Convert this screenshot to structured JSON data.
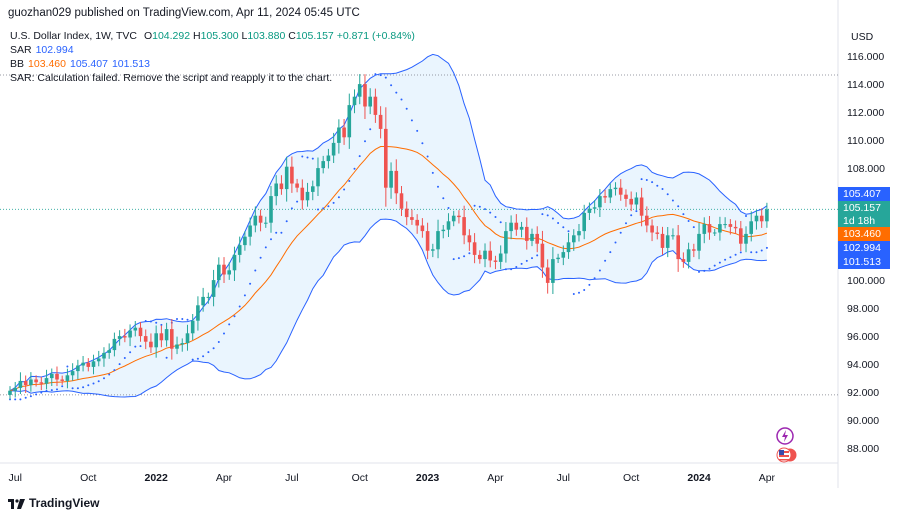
{
  "header": {
    "published": "guozhan029 published on TradingView.com, Apr 11, 2024 05:45 UTC"
  },
  "legend": {
    "symbol": "U.S. Dollar Index, 1W, TVC",
    "o_label": "O",
    "o": "104.292",
    "h_label": "H",
    "h": "105.300",
    "l_label": "L",
    "l": "103.880",
    "c_label": "C",
    "c": "105.157",
    "change": "+0.871 (+0.84%)",
    "sar_label": "SAR",
    "sar": "102.994",
    "bb_label": "BB",
    "bb_basis": "103.460",
    "bb_upper": "105.407",
    "bb_lower": "101.513",
    "sar_error": "SAR: Calculation failed. Remove the script and reapply it to the chart."
  },
  "axis": {
    "currency": "USD"
  },
  "badges": {
    "upper": "105.407",
    "price": "105.157",
    "countdown": "1d 18h",
    "basis": "103.460",
    "sar": "102.994",
    "lower": "101.513"
  },
  "footer": {
    "brand": "TradingView"
  },
  "colors": {
    "up": "#26a69a",
    "down": "#ef5350",
    "band": "#2962ff",
    "basis": "#ff6d00",
    "sar": "#2962ff",
    "fill": "#e3f2fd"
  },
  "icons": [
    "tradingview-logo-icon",
    "lightning-icon",
    "us-flag-icon"
  ],
  "chart_data": {
    "type": "candlestick",
    "title": "U.S. Dollar Index, 1W, TVC",
    "ylim": [
      86.5,
      117.5
    ],
    "y_ticks": [
      "116.000",
      "114.000",
      "112.000",
      "110.000",
      "108.000",
      "106.000",
      "104.000",
      "102.000",
      "100.000",
      "98.000",
      "96.000",
      "94.000",
      "92.000",
      "90.000",
      "88.000"
    ],
    "y_tick_values": [
      116,
      114,
      112,
      110,
      108,
      106,
      104,
      102,
      100,
      98,
      96,
      94,
      92,
      90,
      88
    ],
    "x_ticks": [
      {
        "label": "Jul",
        "bold": false,
        "date": "2021-07"
      },
      {
        "label": "Oct",
        "bold": false,
        "date": "2021-10"
      },
      {
        "label": "2022",
        "bold": true,
        "date": "2022-01"
      },
      {
        "label": "Apr",
        "bold": false,
        "date": "2022-04"
      },
      {
        "label": "Jul",
        "bold": false,
        "date": "2022-07"
      },
      {
        "label": "Oct",
        "bold": false,
        "date": "2022-10"
      },
      {
        "label": "2023",
        "bold": true,
        "date": "2023-01"
      },
      {
        "label": "Apr",
        "bold": false,
        "date": "2023-04"
      },
      {
        "label": "Jul",
        "bold": false,
        "date": "2023-07"
      },
      {
        "label": "Oct",
        "bold": false,
        "date": "2023-10"
      },
      {
        "label": "2024",
        "bold": true,
        "date": "2024-01"
      },
      {
        "label": "Apr",
        "bold": false,
        "date": "2024-04"
      }
    ],
    "close_series": [
      92.2,
      92.4,
      92.9,
      92.6,
      93.0,
      92.8,
      92.7,
      93.1,
      93.4,
      93.0,
      92.9,
      93.3,
      93.6,
      94.0,
      94.2,
      93.9,
      94.3,
      94.5,
      94.9,
      95.1,
      95.9,
      96.1,
      96.0,
      96.5,
      96.7,
      96.1,
      95.7,
      95.3,
      96.3,
      95.8,
      96.6,
      95.2,
      95.5,
      95.6,
      96.3,
      97.2,
      98.3,
      98.9,
      98.9,
      100.1,
      101.2,
      100.5,
      100.8,
      101.9,
      102.6,
      103.2,
      104.0,
      104.7,
      104.2,
      104.2,
      106.1,
      107.0,
      106.6,
      108.2,
      107.0,
      106.7,
      105.8,
      106.4,
      106.8,
      108.1,
      108.6,
      109.0,
      109.9,
      111.0,
      110.3,
      112.6,
      113.2,
      114.1,
      112.5,
      113.2,
      111.9,
      110.9,
      106.7,
      107.9,
      106.3,
      105.2,
      104.6,
      104.4,
      104.0,
      103.6,
      102.2,
      102.3,
      103.6,
      103.7,
      104.3,
      104.7,
      104.6,
      103.3,
      102.8,
      101.9,
      101.6,
      102.2,
      101.5,
      101.4,
      102.0,
      103.6,
      104.2,
      103.7,
      103.9,
      102.9,
      103.4,
      102.7,
      101.0,
      99.9,
      101.6,
      101.7,
      102.1,
      102.8,
      103.3,
      103.6,
      104.9,
      105.2,
      105.3,
      106.1,
      106.0,
      106.6,
      106.7,
      106.2,
      105.9,
      105.5,
      106.0,
      104.7,
      104.0,
      103.5,
      103.4,
      102.4,
      103.3,
      103.3,
      101.6,
      101.4,
      102.3,
      102.2,
      103.4,
      104.1,
      103.5,
      103.5,
      104.1,
      104.1,
      103.9,
      103.8,
      102.7,
      103.4,
      104.3,
      104.7,
      104.3,
      105.157
    ],
    "bollinger": {
      "basis_last": 103.46,
      "upper_last": 105.407,
      "lower_last": 101.513
    },
    "sar_last": 102.994,
    "last_price": 105.157,
    "reference_levels": [
      114.75,
      91.9
    ]
  }
}
